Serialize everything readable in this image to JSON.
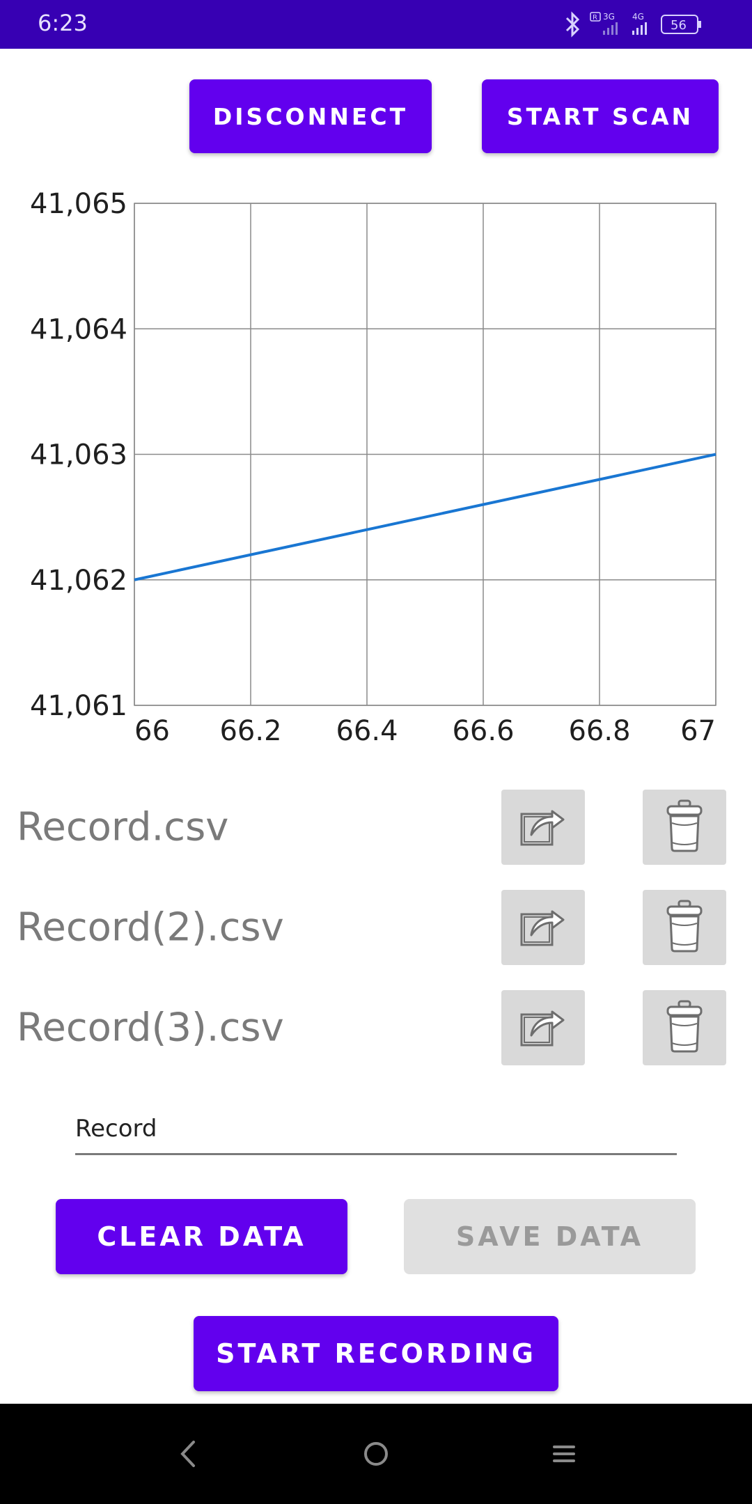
{
  "status_bar": {
    "time": "6:23",
    "battery": "56",
    "network_1": "3G",
    "network_2": "4G",
    "roaming": "R"
  },
  "top_buttons": {
    "disconnect": "DISCONNECT",
    "start_scan": "START SCAN"
  },
  "chart_data": {
    "type": "line",
    "x": [
      66,
      67
    ],
    "series": [
      {
        "values": [
          41062,
          41063
        ],
        "color": "#1976d2"
      }
    ],
    "xlim": [
      66,
      67
    ],
    "ylim": [
      41061,
      41065
    ],
    "x_ticks": [
      "66",
      "66.2",
      "66.4",
      "66.6",
      "66.8",
      "67"
    ],
    "y_ticks": [
      "41,065",
      "41,064",
      "41,063",
      "41,062",
      "41,061"
    ],
    "title": "",
    "xlabel": "",
    "ylabel": "",
    "grid": true
  },
  "records": [
    {
      "name": "Record.csv"
    },
    {
      "name": "Record(2).csv"
    },
    {
      "name": "Record(3).csv"
    }
  ],
  "filename_input": {
    "value": "Record"
  },
  "bottom_buttons": {
    "clear_data": "CLEAR DATA",
    "save_data": "SAVE DATA",
    "start_recording": "START RECORDING"
  },
  "colors": {
    "status_bar": "#3700b3",
    "primary": "#6200ee",
    "line": "#1976d2",
    "disabled": "#e0e0e0"
  }
}
